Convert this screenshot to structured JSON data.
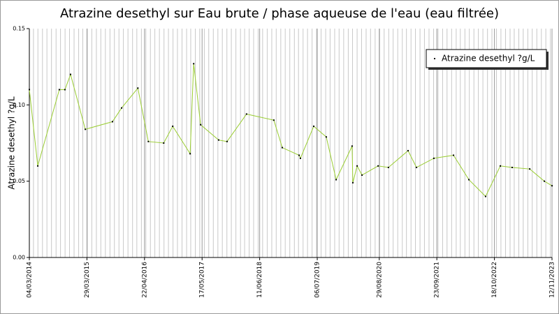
{
  "chart_data": {
    "type": "line",
    "title": "Atrazine desethyl sur Eau brute / phase aqueuse de l'eau (eau filtrée)",
    "y_label": "Atrazine desethyl ?g/L",
    "x": [
      "2014-03-04",
      "2014-04-30",
      "2014-09-23",
      "2014-10-31",
      "2014-12-08",
      "2015-03-18",
      "2015-09-18",
      "2015-11-19",
      "2016-03-08",
      "2016-05-18",
      "2016-08-30",
      "2016-10-30",
      "2017-02-25",
      "2017-03-21",
      "2017-05-07",
      "2017-09-06",
      "2017-11-02",
      "2018-03-14",
      "2018-09-15",
      "2018-11-11",
      "2019-03-05",
      "2019-03-14",
      "2019-06-12",
      "2019-09-05",
      "2019-11-11",
      "2020-02-27",
      "2020-03-03",
      "2020-04-01",
      "2020-05-04",
      "2020-08-21",
      "2020-10-30",
      "2021-03-12",
      "2021-05-08",
      "2021-09-03",
      "2022-01-14",
      "2022-04-28",
      "2022-08-19",
      "2022-11-27",
      "2023-02-15",
      "2023-06-14",
      "2023-09-21",
      "2023-11-12"
    ],
    "series": [
      {
        "name": "Atrazine desethyl ?g/L",
        "color": "#9acd32",
        "values": [
          0.11,
          0.06,
          0.11,
          0.11,
          0.12,
          0.084,
          0.089,
          0.098,
          0.111,
          0.076,
          0.075,
          0.086,
          0.068,
          0.127,
          0.087,
          0.077,
          0.076,
          0.094,
          0.09,
          0.072,
          0.067,
          0.065,
          0.086,
          0.079,
          0.051,
          0.073,
          0.049,
          0.06,
          0.054,
          0.06,
          0.059,
          0.07,
          0.059,
          0.065,
          0.067,
          0.051,
          0.04,
          0.06,
          0.059,
          0.058,
          0.05,
          0.047
        ]
      }
    ],
    "xlim": [
      "2014-03-04",
      "2023-11-12"
    ],
    "xticks": [
      {
        "value": "2014-03-04",
        "label": "04/03/2014"
      },
      {
        "value": "2015-03-29",
        "label": "29/03/2015"
      },
      {
        "value": "2016-04-22",
        "label": "22/04/2016"
      },
      {
        "value": "2017-05-17",
        "label": "17/05/2017"
      },
      {
        "value": "2018-06-11",
        "label": "11/06/2018"
      },
      {
        "value": "2019-07-06",
        "label": "06/07/2019"
      },
      {
        "value": "2020-08-29",
        "label": "29/08/2020"
      },
      {
        "value": "2021-09-23",
        "label": "23/09/2021"
      },
      {
        "value": "2022-10-18",
        "label": "18/10/2022"
      },
      {
        "value": "2023-11-12",
        "label": "12/11/2023"
      }
    ],
    "ylim": [
      0,
      0.15
    ],
    "yticks": [
      {
        "value": 0,
        "label": "0.00"
      },
      0.05,
      {
        "value": 0.1,
        "label": "0.10"
      },
      0.15
    ],
    "grid": true,
    "legend": "upper right"
  }
}
